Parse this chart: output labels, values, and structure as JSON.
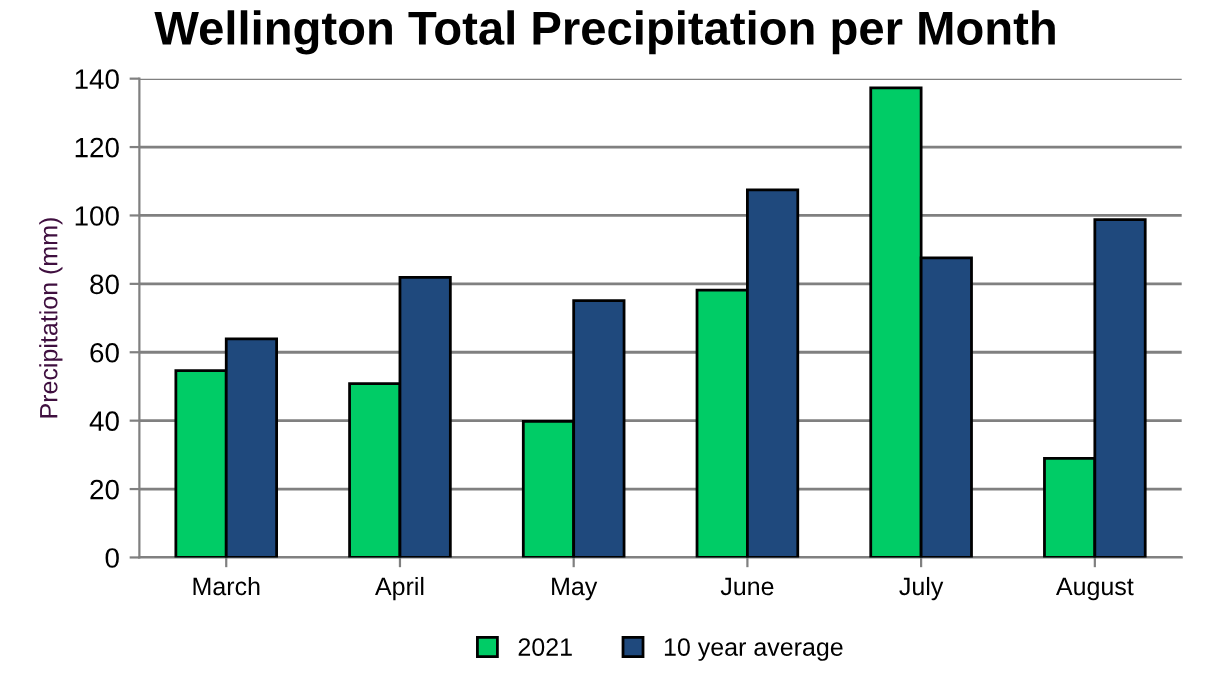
{
  "chart_data": {
    "type": "bar",
    "title": "Wellington Total Precipitation per Month",
    "ylabel": "Precipitation (mm)",
    "categories": [
      "March",
      "April",
      "May",
      "June",
      "July",
      "August"
    ],
    "series": [
      {
        "name": "2021",
        "color": "#00cc66",
        "values": [
          54.6,
          50.8,
          39.8,
          78.2,
          137.3,
          29.0
        ]
      },
      {
        "name": "10 year average",
        "color": "#1f497d",
        "values": [
          63.9,
          81.9,
          75.1,
          107.5,
          87.6,
          98.8
        ]
      }
    ],
    "ylim": [
      0,
      140
    ],
    "yticks": [
      0,
      20,
      40,
      60,
      80,
      100,
      120,
      140
    ],
    "grid": "y",
    "legend": "bottom"
  }
}
